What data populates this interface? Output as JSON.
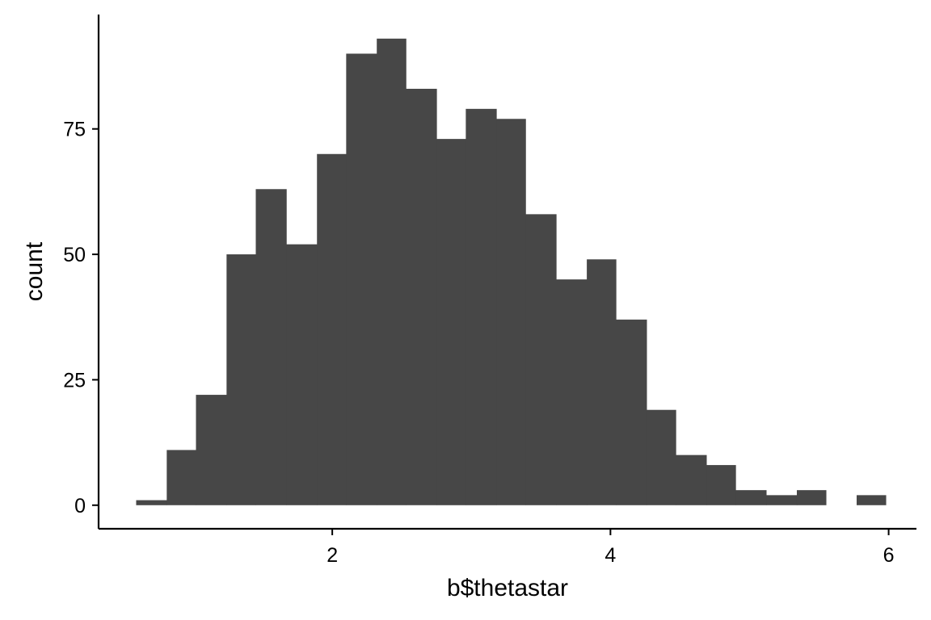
{
  "chart_data": {
    "type": "bar",
    "subtype": "histogram",
    "title": "",
    "xlabel": "b$thetastar",
    "ylabel": "count",
    "xlim": [
      0.32,
      6.2
    ],
    "ylim": [
      -4.7,
      97.8
    ],
    "x_ticks": [
      {
        "value": 2,
        "label": "2"
      },
      {
        "value": 4,
        "label": "4"
      },
      {
        "value": 6,
        "label": "6"
      }
    ],
    "y_ticks": [
      {
        "value": 0,
        "label": "0"
      },
      {
        "value": 25,
        "label": "25"
      },
      {
        "value": 50,
        "label": "50"
      },
      {
        "value": 75,
        "label": "75"
      }
    ],
    "bins": [
      {
        "x0": 0.59,
        "x1": 0.81,
        "count": 1
      },
      {
        "x0": 0.81,
        "x1": 1.02,
        "count": 11
      },
      {
        "x0": 1.02,
        "x1": 1.24,
        "count": 22
      },
      {
        "x0": 1.24,
        "x1": 1.45,
        "count": 50
      },
      {
        "x0": 1.45,
        "x1": 1.67,
        "count": 63
      },
      {
        "x0": 1.67,
        "x1": 1.89,
        "count": 52
      },
      {
        "x0": 1.89,
        "x1": 2.1,
        "count": 70
      },
      {
        "x0": 2.1,
        "x1": 2.32,
        "count": 90
      },
      {
        "x0": 2.32,
        "x1": 2.53,
        "count": 93
      },
      {
        "x0": 2.53,
        "x1": 2.75,
        "count": 83
      },
      {
        "x0": 2.75,
        "x1": 2.96,
        "count": 73
      },
      {
        "x0": 2.96,
        "x1": 3.18,
        "count": 79
      },
      {
        "x0": 3.18,
        "x1": 3.39,
        "count": 77
      },
      {
        "x0": 3.39,
        "x1": 3.61,
        "count": 58
      },
      {
        "x0": 3.61,
        "x1": 3.83,
        "count": 45
      },
      {
        "x0": 3.83,
        "x1": 4.04,
        "count": 49
      },
      {
        "x0": 4.04,
        "x1": 4.26,
        "count": 37
      },
      {
        "x0": 4.26,
        "x1": 4.47,
        "count": 19
      },
      {
        "x0": 4.47,
        "x1": 4.69,
        "count": 10
      },
      {
        "x0": 4.69,
        "x1": 4.9,
        "count": 8
      },
      {
        "x0": 4.9,
        "x1": 5.12,
        "count": 3
      },
      {
        "x0": 5.12,
        "x1": 5.34,
        "count": 2
      },
      {
        "x0": 5.34,
        "x1": 5.55,
        "count": 3
      },
      {
        "x0": 5.55,
        "x1": 5.77,
        "count": 0
      },
      {
        "x0": 5.77,
        "x1": 5.98,
        "count": 2
      }
    ],
    "bar_color": "#474747",
    "axis_color": "#000000",
    "background": "#ffffff",
    "grid": false,
    "legend": "none"
  }
}
